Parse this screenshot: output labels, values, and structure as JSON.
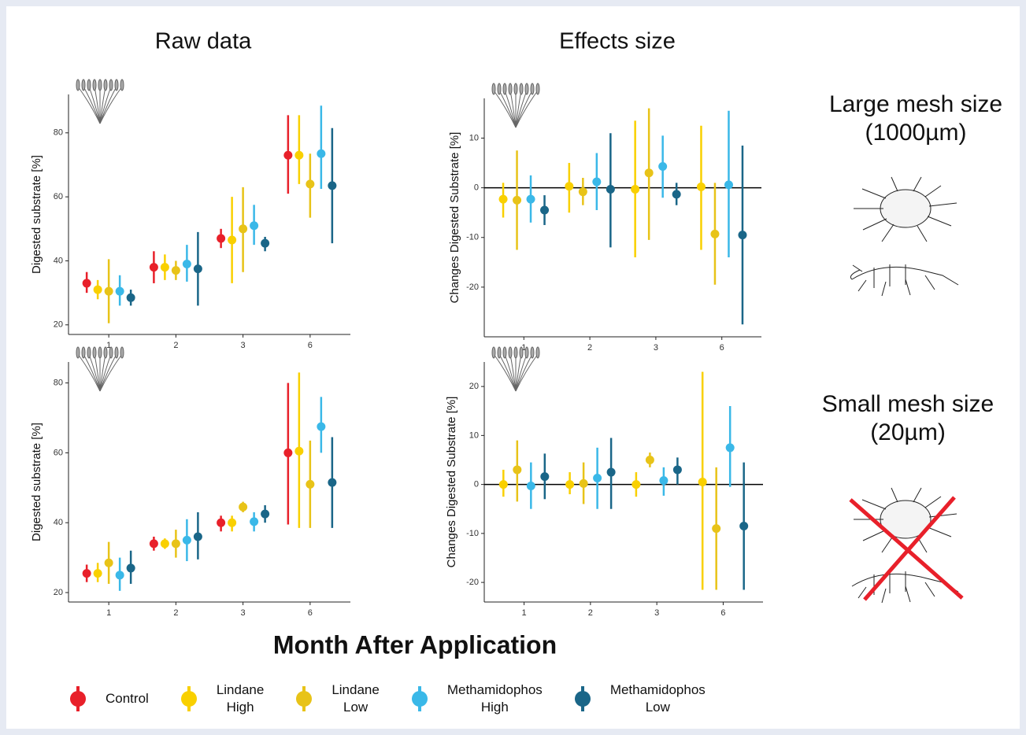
{
  "column_titles": [
    "Raw data",
    "Effects size"
  ],
  "row_labels": [
    [
      "Large mesh size",
      "(1000µm)"
    ],
    [
      "Small mesh size",
      "(20µm)"
    ]
  ],
  "x_axis_title": "Month After Application",
  "chart_data": [
    {
      "type": "pointrange",
      "y_label": "Digested substrate [%]",
      "categories": [
        "1",
        "2",
        "3",
        "6"
      ],
      "ylim": [
        17,
        92
      ],
      "yticks": [
        20,
        40,
        60,
        80
      ],
      "series": [
        {
          "name": "Control",
          "color": "#e8202a",
          "values": [
            33,
            38,
            47,
            73
          ],
          "low": [
            30,
            33,
            44,
            61
          ],
          "high": [
            36.5,
            43,
            50,
            85.5
          ]
        },
        {
          "name": "Lindane High",
          "color": "#f9d000",
          "values": [
            31,
            38,
            46.5,
            73
          ],
          "low": [
            28,
            34,
            33,
            64
          ],
          "high": [
            34,
            42,
            60,
            85.5
          ]
        },
        {
          "name": "Lindane Low",
          "color": "#e8c318",
          "values": [
            30.5,
            37,
            50,
            64
          ],
          "low": [
            20.5,
            34,
            36.5,
            53.5
          ],
          "high": [
            40.5,
            40,
            63,
            73.5
          ]
        },
        {
          "name": "Methamidophos High",
          "color": "#3ab8e8",
          "values": [
            30.5,
            39,
            51,
            73.5
          ],
          "low": [
            26,
            33.5,
            45,
            62.5
          ],
          "high": [
            35.5,
            45,
            57.5,
            88.5
          ]
        },
        {
          "name": "Methamidophos Low",
          "color": "#1a6688",
          "values": [
            28.5,
            37.5,
            45.5,
            63.5
          ],
          "low": [
            26,
            26,
            43,
            45.5
          ],
          "high": [
            31,
            49,
            47.5,
            81.5
          ]
        }
      ]
    },
    {
      "type": "pointrange",
      "y_label": "Changes Digested Substrate [%]",
      "categories": [
        "1",
        "2",
        "3",
        "6"
      ],
      "ylim": [
        -30,
        18
      ],
      "yticks": [
        -20,
        -10,
        0,
        10
      ],
      "reference_line": 0,
      "series": [
        {
          "name": "Lindane High",
          "color": "#f9d000",
          "values": [
            -2.3,
            0.3,
            -0.3,
            0.2
          ],
          "low": [
            -6,
            -5,
            -14,
            -12.5
          ],
          "high": [
            1,
            5,
            13.5,
            12.5
          ]
        },
        {
          "name": "Lindane Low",
          "color": "#e8c318",
          "values": [
            -2.5,
            -0.8,
            3,
            -9.3
          ],
          "low": [
            -12.5,
            -3.5,
            -10.5,
            -19.5
          ],
          "high": [
            7.5,
            2,
            16,
            1
          ]
        },
        {
          "name": "Methamidophos High",
          "color": "#3ab8e8",
          "values": [
            -2.3,
            1.2,
            4.3,
            0.6
          ],
          "low": [
            -7,
            -4.5,
            -2,
            -14
          ],
          "high": [
            2.5,
            7,
            10.5,
            15.5
          ]
        },
        {
          "name": "Methamidophos Low",
          "color": "#1a6688",
          "values": [
            -4.5,
            -0.3,
            -1.3,
            -9.5
          ],
          "low": [
            -7.5,
            -12,
            -3.5,
            -27.5
          ],
          "high": [
            -1.5,
            11,
            1,
            8.5
          ]
        }
      ]
    },
    {
      "type": "pointrange",
      "y_label": "Digested substrate [%]",
      "categories": [
        "1",
        "2",
        "3",
        "6"
      ],
      "ylim": [
        17.3,
        86
      ],
      "yticks": [
        20,
        40,
        60,
        80
      ],
      "series": [
        {
          "name": "Control",
          "color": "#e8202a",
          "values": [
            25.5,
            34,
            40,
            60
          ],
          "low": [
            23,
            32,
            37.5,
            39.5
          ],
          "high": [
            28,
            36,
            42,
            80
          ]
        },
        {
          "name": "Lindane High",
          "color": "#f9d000",
          "values": [
            25.5,
            34,
            40,
            60.5
          ],
          "low": [
            23,
            32.5,
            37.5,
            38.5
          ],
          "high": [
            28.5,
            35.5,
            42,
            83
          ]
        },
        {
          "name": "Lindane Low",
          "color": "#e8c318",
          "values": [
            28.5,
            34,
            44.5,
            51
          ],
          "low": [
            22.5,
            30,
            43,
            38.5
          ],
          "high": [
            34.5,
            38,
            46,
            63.5
          ]
        },
        {
          "name": "Methamidophos High",
          "color": "#3ab8e8",
          "values": [
            25,
            35,
            40.3,
            67.5
          ],
          "low": [
            20.5,
            29,
            37.5,
            60
          ],
          "high": [
            30,
            41,
            43,
            76
          ]
        },
        {
          "name": "Methamidophos Low",
          "color": "#1a6688",
          "values": [
            27,
            36,
            42.5,
            51.5
          ],
          "low": [
            22.5,
            29.5,
            40,
            38.5
          ],
          "high": [
            32,
            43,
            45,
            64.5
          ]
        }
      ]
    },
    {
      "type": "pointrange",
      "y_label": "Changes Digested Substrate [%]",
      "categories": [
        "1",
        "2",
        "3",
        "6"
      ],
      "ylim": [
        -24,
        25
      ],
      "yticks": [
        -20,
        -10,
        0,
        10,
        20
      ],
      "reference_line": 0,
      "series": [
        {
          "name": "Lindane High",
          "color": "#f9d000",
          "values": [
            0,
            0,
            0,
            0.5
          ],
          "low": [
            -2.5,
            -2,
            -2.5,
            -21.5
          ],
          "high": [
            3,
            2.5,
            2.5,
            23
          ]
        },
        {
          "name": "Lindane Low",
          "color": "#e8c318",
          "values": [
            3,
            0.2,
            5,
            -9
          ],
          "low": [
            -3.5,
            -4,
            3.5,
            -21.5
          ],
          "high": [
            9,
            4.5,
            6.5,
            3.5
          ]
        },
        {
          "name": "Methamidophos High",
          "color": "#3ab8e8",
          "values": [
            -0.3,
            1.3,
            0.8,
            7.5
          ],
          "low": [
            -5,
            -5,
            -2.3,
            -0.5
          ],
          "high": [
            4.5,
            7.5,
            3.5,
            16
          ]
        },
        {
          "name": "Methamidophos Low",
          "color": "#1a6688",
          "values": [
            1.6,
            2.5,
            3,
            -8.5
          ],
          "low": [
            -3,
            -5,
            0,
            -21.5
          ],
          "high": [
            6.3,
            9.5,
            5.5,
            4.5
          ]
        }
      ]
    }
  ]
}
